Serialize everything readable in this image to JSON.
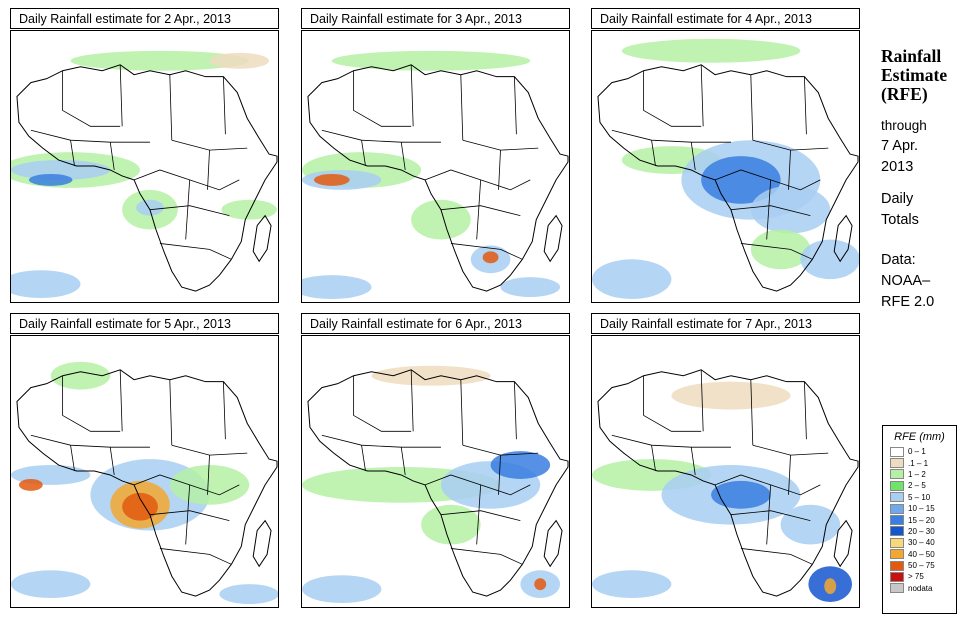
{
  "panels": [
    {
      "title": "Daily Rainfall estimate for  2 Apr., 2013"
    },
    {
      "title": "Daily Rainfall estimate for  3 Apr., 2013"
    },
    {
      "title": "Daily Rainfall estimate for  4 Apr., 2013"
    },
    {
      "title": "Daily Rainfall estimate for  5 Apr., 2013"
    },
    {
      "title": "Daily Rainfall estimate for  6 Apr., 2013"
    },
    {
      "title": "Daily Rainfall estimate for  7 Apr., 2013"
    }
  ],
  "side": {
    "title_line1": "Rainfall",
    "title_line2": "Estimate",
    "title_line3": "(RFE)",
    "through_line1": "through",
    "through_line2": "7 Apr.",
    "through_line3": "2013",
    "daily_line1": "Daily",
    "daily_line2": "Totals",
    "data_line1": "Data:",
    "data_line2": "NOAA–",
    "data_line3": "RFE 2.0"
  },
  "legend": {
    "title": "RFE (mm)",
    "items": [
      {
        "label": "0 – 1",
        "color": "#ffffff"
      },
      {
        "label": ".1 – 1",
        "color": "#eedcc0"
      },
      {
        "label": "1 – 2",
        "color": "#b5f0a5"
      },
      {
        "label": "2 – 5",
        "color": "#6fe36a"
      },
      {
        "label": "5 – 10",
        "color": "#a8cef2"
      },
      {
        "label": "10 – 15",
        "color": "#6fa8eb"
      },
      {
        "label": "15 – 20",
        "color": "#3a7ee0"
      },
      {
        "label": "20 – 30",
        "color": "#1456cf"
      },
      {
        "label": "30 – 40",
        "color": "#f8d878"
      },
      {
        "label": "40 – 50",
        "color": "#f2a830"
      },
      {
        "label": "50 – 75",
        "color": "#e25a10"
      },
      {
        "label": "> 75",
        "color": "#c81010"
      },
      {
        "label": "nodata",
        "color": "#c8c8c8"
      }
    ]
  },
  "map_colors": {
    "land_outline": "#000000",
    "light_green": "#b5f0a5",
    "green": "#6fe36a",
    "light_blue": "#a8cef2",
    "blue": "#3a7ee0",
    "dark_blue": "#1456cf",
    "orange": "#f2a830",
    "red": "#e25a10",
    "tan": "#eedcc0"
  }
}
